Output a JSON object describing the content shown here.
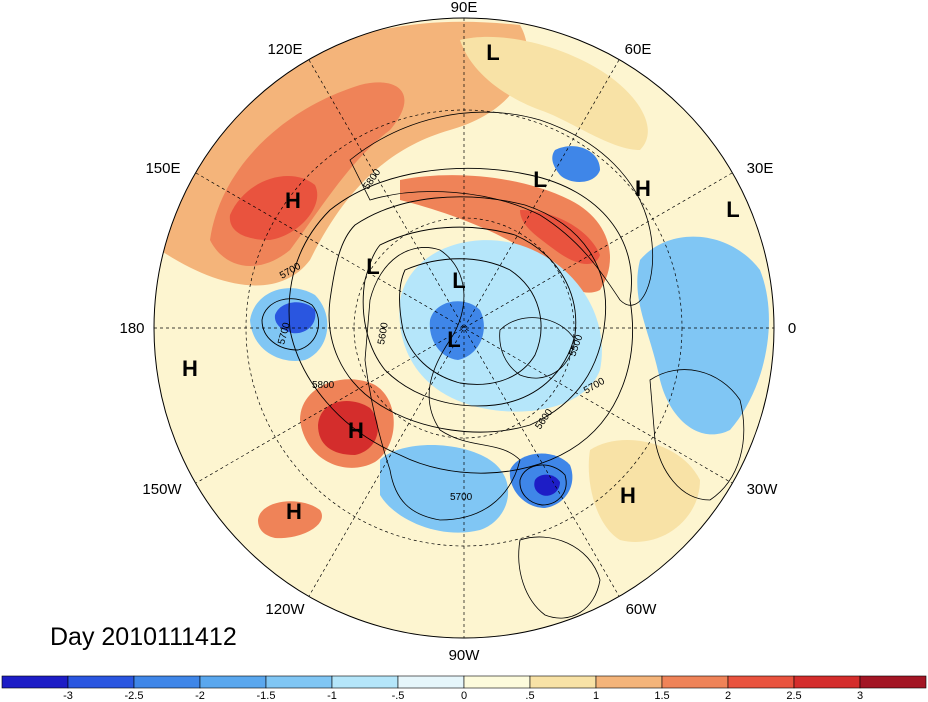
{
  "title": "Day 2010111412",
  "longitude_labels": {
    "top": "90E",
    "top_right": "60E",
    "right_upper": "30E",
    "right": "0",
    "right_lower": "30W",
    "bottom_right": "60W",
    "bottom": "90W",
    "bottom_left": "120W",
    "left_lower": "150W",
    "left": "180",
    "left_upper": "150E",
    "top_left": "120E"
  },
  "markers": [
    {
      "letter": "L",
      "id": "l-siberia-north"
    },
    {
      "letter": "H",
      "id": "h-east-siberia"
    },
    {
      "letter": "L",
      "id": "l-ural"
    },
    {
      "letter": "H",
      "id": "h-scandinavia"
    },
    {
      "letter": "L",
      "id": "l-europe"
    },
    {
      "letter": "L",
      "id": "l-east-siberia-arctic"
    },
    {
      "letter": "L",
      "id": "l-arctic"
    },
    {
      "letter": "L",
      "id": "l-pole"
    },
    {
      "letter": "H",
      "id": "h-pacific-west"
    },
    {
      "letter": "H",
      "id": "h-gulf-alaska"
    },
    {
      "letter": "H",
      "id": "h-pacific-south"
    },
    {
      "letter": "H",
      "id": "h-atlantic"
    }
  ],
  "contour_labels": [
    "5800",
    "5700",
    "5700",
    "5600",
    "5800",
    "5600",
    "5700",
    "5700",
    "5500"
  ],
  "colorbar": {
    "colors": [
      "#1d1dc6",
      "#2a56e0",
      "#3f86e8",
      "#5aa7ee",
      "#80c6f4",
      "#b5e6fa",
      "#e6f6fb",
      "#fdfbdc",
      "#f8e2a6",
      "#f4b47a",
      "#ef8358",
      "#e9533e",
      "#d42d2c",
      "#a31524"
    ],
    "tick_labels": [
      "-3",
      "-2.5",
      "-2",
      "-1.5",
      "-1",
      "-.5",
      "0",
      ".5",
      "1",
      "1.5",
      "2",
      "2.5",
      "3"
    ]
  }
}
